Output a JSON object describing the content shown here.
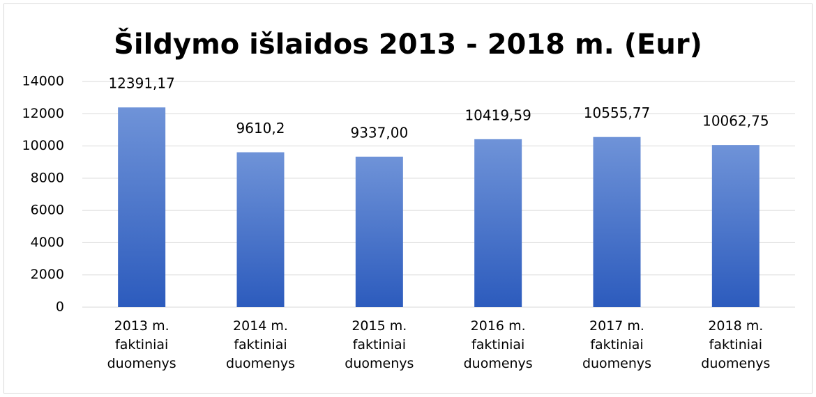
{
  "chart_data": {
    "type": "bar",
    "title": "Šildymo išlaidos 2013 - 2018 m. (Eur)",
    "categories": [
      "2013 m. faktiniai duomenys",
      "2014 m. faktiniai duomenys",
      "2015 m. faktiniai duomenys",
      "2016 m. faktiniai duomenys",
      "2017 m. faktiniai duomenys",
      "2018 m. faktiniai duomenys"
    ],
    "values": [
      12391.17,
      9610.2,
      9337,
      10419.59,
      10555.77,
      10062.75
    ],
    "value_labels": [
      "12391,17",
      "9610,2",
      "9337,00",
      "10419,59",
      "10555,77",
      "10062,75"
    ],
    "color": "#4a78d0",
    "ylim": [
      0,
      14000
    ],
    "yticks": [
      0,
      2000,
      4000,
      6000,
      8000,
      10000,
      12000,
      14000
    ],
    "grid": true
  }
}
